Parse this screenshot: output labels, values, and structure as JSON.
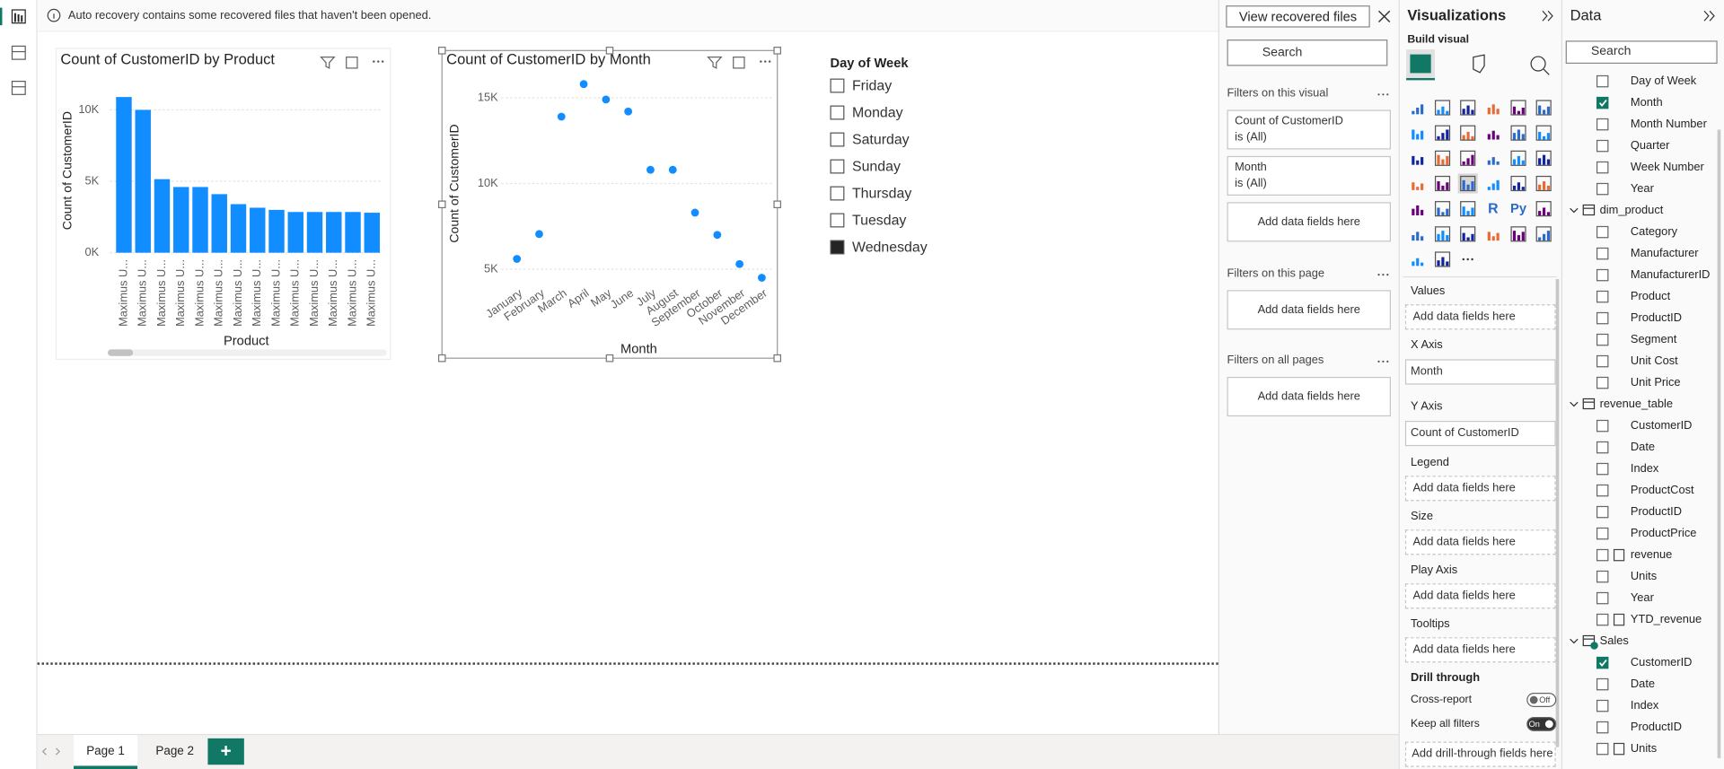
{
  "banner": {
    "message": "Auto recovery contains some recovered files that haven't been opened.",
    "button": "View recovered files"
  },
  "chart_data": [
    {
      "type": "bar",
      "title": "Count of CustomerID by Product",
      "categories": [
        "Maximus U...",
        "Maximus U...",
        "Maximus U...",
        "Maximus U...",
        "Maximus U...",
        "Maximus U...",
        "Maximus U...",
        "Maximus U...",
        "Maximus U...",
        "Maximus U...",
        "Maximus U...",
        "Maximus U...",
        "Maximus U...",
        "Maximus U..."
      ],
      "values": [
        10900,
        10000,
        5150,
        4600,
        4600,
        4100,
        3400,
        3150,
        3000,
        2850,
        2850,
        2850,
        2850,
        2800
      ],
      "color": "#118dff",
      "ylim": [
        0,
        11500
      ],
      "yticks": [
        {
          "value": 0,
          "label": "0K"
        },
        {
          "value": 5000,
          "label": "5K"
        },
        {
          "value": 10000,
          "label": "10K"
        }
      ],
      "xlabel": "Product",
      "ylabel": "Count of CustomerID",
      "grid": true
    },
    {
      "type": "scatter",
      "title": "Count of CustomerID by Month",
      "categories": [
        "January",
        "February",
        "March",
        "April",
        "May",
        "June",
        "July",
        "August",
        "September",
        "October",
        "November",
        "December"
      ],
      "values": [
        5600,
        7050,
        13900,
        15800,
        14900,
        14200,
        10800,
        10800,
        8300,
        7000,
        5300,
        4500
      ],
      "color": "#118dff",
      "ylim": [
        4000,
        16000
      ],
      "yticks": [
        {
          "value": 5000,
          "label": "5K"
        },
        {
          "value": 10000,
          "label": "10K"
        },
        {
          "value": 15000,
          "label": "15K"
        }
      ],
      "xlabel": "Month",
      "ylabel": "Count of CustomerID",
      "grid": true
    }
  ],
  "slicer": {
    "title": "Day of Week",
    "items": [
      {
        "label": "Friday",
        "checked": false
      },
      {
        "label": "Monday",
        "checked": false
      },
      {
        "label": "Saturday",
        "checked": false
      },
      {
        "label": "Sunday",
        "checked": false
      },
      {
        "label": "Thursday",
        "checked": false
      },
      {
        "label": "Tuesday",
        "checked": false
      },
      {
        "label": "Wednesday",
        "checked": true
      }
    ]
  },
  "filters_pane": {
    "search": "Search",
    "sections": [
      {
        "title": "Filters on this visual",
        "cards": [
          {
            "field": "Count of CustomerID",
            "state": "is (All)"
          },
          {
            "field": "Month",
            "state": "is (All)"
          }
        ],
        "add": "Add data fields here"
      },
      {
        "title": "Filters on this page",
        "cards": [],
        "add": "Add data fields here"
      },
      {
        "title": "Filters on all pages",
        "cards": [],
        "add": "Add data fields here"
      }
    ]
  },
  "visualizations_pane": {
    "title": "Visualizations",
    "subtitle": "Build visual",
    "icon_texts": [
      "R",
      "Py"
    ],
    "wells": [
      {
        "label": "Values",
        "placeholder": "Add data fields here"
      },
      {
        "label": "X Axis",
        "field": "Month"
      },
      {
        "label": "Y Axis",
        "field": "Count of CustomerID"
      },
      {
        "label": "Legend",
        "placeholder": "Add data fields here"
      },
      {
        "label": "Size",
        "placeholder": "Add data fields here"
      },
      {
        "label": "Play Axis",
        "placeholder": "Add data fields here"
      },
      {
        "label": "Tooltips",
        "placeholder": "Add data fields here"
      }
    ],
    "drill_through": {
      "title": "Drill through",
      "options": [
        {
          "label": "Cross-report",
          "toggle": "Off",
          "on": false
        },
        {
          "label": "Keep all filters",
          "toggle": "On",
          "on": true
        }
      ],
      "placeholder": "Add drill-through fields here"
    }
  },
  "data_pane": {
    "title": "Data",
    "search": "Search",
    "items": [
      {
        "label": "Day of Week",
        "checked": false
      },
      {
        "label": "Month",
        "checked": true
      },
      {
        "label": "Month Number",
        "checked": false
      },
      {
        "label": "Quarter",
        "checked": false
      },
      {
        "label": "Week Number",
        "checked": false
      },
      {
        "label": "Year",
        "checked": false
      },
      {
        "table": "dim_product"
      },
      {
        "label": "Category",
        "checked": false
      },
      {
        "label": "Manufacturer",
        "checked": false
      },
      {
        "label": "ManufacturerID",
        "checked": false
      },
      {
        "label": "Product",
        "checked": false
      },
      {
        "label": "ProductID",
        "checked": false
      },
      {
        "label": "Segment",
        "checked": false
      },
      {
        "label": "Unit Cost",
        "checked": false
      },
      {
        "label": "Unit Price",
        "checked": false
      },
      {
        "table": "revenue_table"
      },
      {
        "label": "CustomerID",
        "checked": false
      },
      {
        "label": "Date",
        "checked": false
      },
      {
        "label": "Index",
        "checked": false
      },
      {
        "label": "ProductCost",
        "checked": false
      },
      {
        "label": "ProductID",
        "checked": false
      },
      {
        "label": "ProductPrice",
        "checked": false
      },
      {
        "label": "revenue",
        "checked": false,
        "icon": "measure"
      },
      {
        "label": "Units",
        "checked": false
      },
      {
        "label": "Year",
        "checked": false
      },
      {
        "label": "YTD_revenue",
        "checked": false,
        "icon": "calc"
      },
      {
        "table": "Sales",
        "active": true
      },
      {
        "label": "CustomerID",
        "checked": true
      },
      {
        "label": "Date",
        "checked": false
      },
      {
        "label": "Index",
        "checked": false
      },
      {
        "label": "ProductID",
        "checked": false
      },
      {
        "label": "Units",
        "checked": false,
        "icon": "sigma"
      }
    ]
  },
  "pages": {
    "tabs": [
      "Page 1",
      "Page 2"
    ],
    "active": 0,
    "add": "+"
  }
}
